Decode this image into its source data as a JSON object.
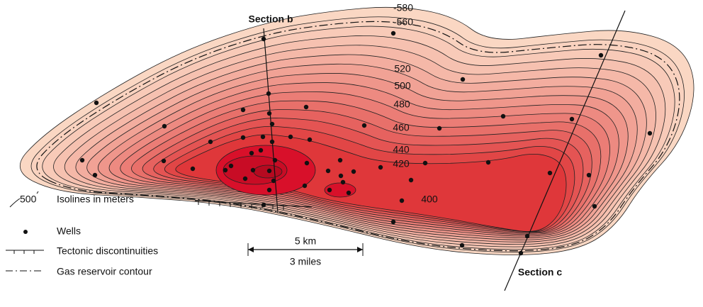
{
  "contour_labels": [
    "-580",
    "-560",
    "520",
    "500",
    "480",
    "460",
    "440",
    "420",
    "400"
  ],
  "sections": [
    "Section b",
    "Section c"
  ],
  "scale": {
    "km": "5 km",
    "miles": "3 miles"
  },
  "legend": [
    {
      "symbol": "500",
      "label": "Isolines in meters"
    },
    {
      "label": "Wells"
    },
    {
      "label": "Tectonic discontinuities"
    },
    {
      "label": "Gas reservoir contour"
    }
  ]
}
